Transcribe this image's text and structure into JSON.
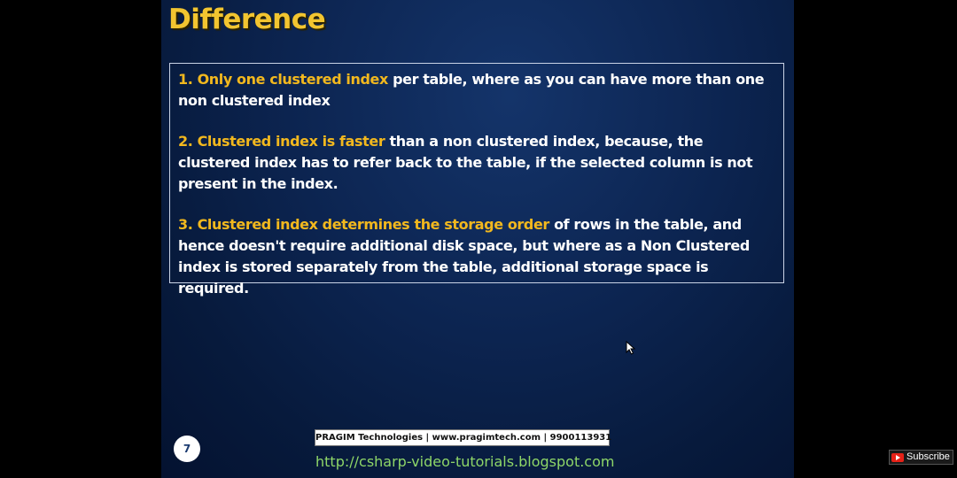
{
  "slide": {
    "title": "Difference",
    "points": [
      {
        "highlight": "1. Only one clustered index",
        "text": " per table, where as you can have more than one non clustered index"
      },
      {
        "highlight": "2. Clustered index is faster",
        "text": " than a non clustered index, because, the clustered index has to refer back to the table, if the selected column is not present in the index."
      },
      {
        "highlight": "3. Clustered index determines the storage order",
        "text": " of rows in the table, and hence doesn't require additional disk space, but where as a Non Clustered index is stored separately from the table, additional storage space is required."
      }
    ],
    "page_number": "7",
    "footer_banner": "PRAGIM Technologies | www.pragimtech.com | 9900113931",
    "footer_url": "http://csharp-video-tutorials.blogspot.com"
  },
  "overlay": {
    "subscribe_label": "Subscribe",
    "subscribe_icon": "youtube-icon"
  },
  "colors": {
    "title": "#f2c530",
    "highlight": "#f2b81e",
    "body_text": "#ffffff",
    "url": "#8ed668",
    "slide_background": "#0c2450"
  }
}
